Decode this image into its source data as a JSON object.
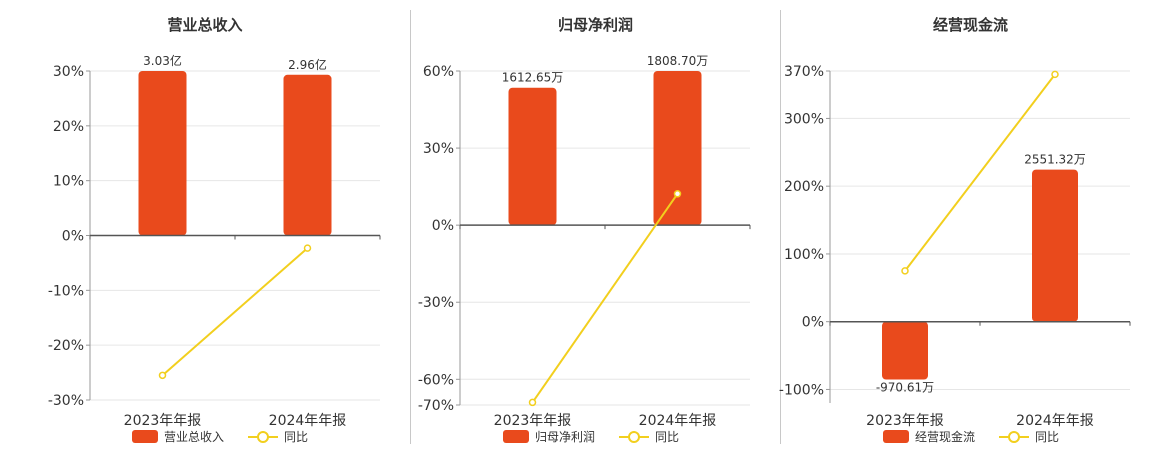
{
  "colors": {
    "bar": "#e94a1c",
    "line": "#f2cf1e"
  },
  "chart_data": [
    {
      "type": "bar",
      "title": "营业总收入",
      "categories": [
        "2023年年报",
        "2024年年报"
      ],
      "bar_series": {
        "name": "营业总收入",
        "values": [
          3.03,
          2.96
        ],
        "labels": [
          "3.03亿",
          "2.96亿"
        ]
      },
      "line_series": {
        "name": "同比",
        "values": [
          -25.5,
          -2.3
        ]
      },
      "ylim": [
        -30,
        30
      ],
      "yticks": [
        30,
        20,
        10,
        0,
        -10,
        -20,
        -30
      ],
      "ytick_labels": [
        "30%",
        "20%",
        "10%",
        "0%",
        "-10%",
        "-20%",
        "-30%"
      ],
      "grid": true,
      "legend_position": "bottom"
    },
    {
      "type": "bar",
      "title": "归母净利润",
      "categories": [
        "2023年年报",
        "2024年年报"
      ],
      "bar_series": {
        "name": "归母净利润",
        "values": [
          1612.65,
          1808.7
        ],
        "labels": [
          "1612.65万",
          "1808.70万"
        ]
      },
      "line_series": {
        "name": "同比",
        "values": [
          -69,
          12.2
        ]
      },
      "ylim": [
        -70,
        60
      ],
      "yticks": [
        60,
        30,
        0,
        -30,
        -60,
        -70
      ],
      "ytick_labels": [
        "60%",
        "30%",
        "0%",
        "-30%",
        "-60%",
        "-70%"
      ],
      "grid": true,
      "legend_position": "bottom"
    },
    {
      "type": "bar",
      "title": "经营现金流",
      "categories": [
        "2023年年报",
        "2024年年报"
      ],
      "bar_series": {
        "name": "经营现金流",
        "values": [
          -970.61,
          2551.32
        ],
        "labels": [
          "-970.61万",
          "2551.32万"
        ]
      },
      "line_series": {
        "name": "同比",
        "values": [
          75,
          365
        ]
      },
      "ylim": [
        -120,
        370
      ],
      "yticks": [
        370,
        300,
        200,
        100,
        0,
        -100
      ],
      "ytick_labels": [
        "370%",
        "300%",
        "200%",
        "100%",
        "0%",
        "-100%"
      ],
      "grid": true,
      "legend_position": "bottom"
    }
  ]
}
